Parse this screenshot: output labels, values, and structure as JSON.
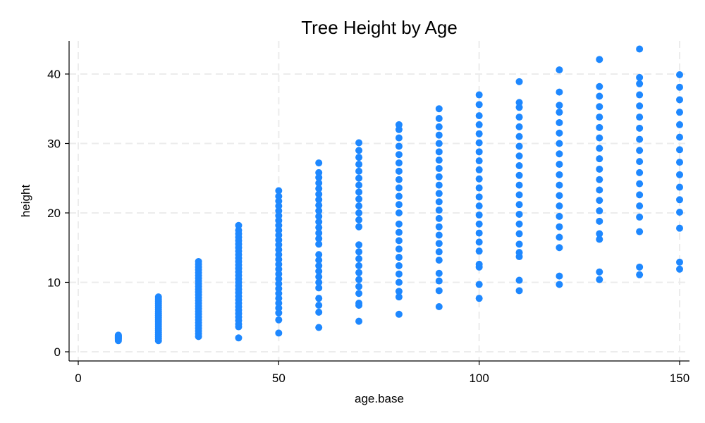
{
  "chart_data": {
    "type": "scatter",
    "title": "Tree Height by Age",
    "xlabel": "age.base",
    "ylabel": "height",
    "xlim": [
      -1,
      152
    ],
    "ylim": [
      -1.5,
      45
    ],
    "x_ticks": [
      0,
      50,
      100,
      150
    ],
    "y_ticks": [
      0,
      10,
      20,
      30,
      40
    ],
    "grid": true,
    "point_color": "#1E88FF",
    "series": [
      {
        "points": [
          [
            10,
            1.6
          ],
          [
            10,
            1.8
          ],
          [
            10,
            1.9
          ],
          [
            10,
            2.0
          ],
          [
            10,
            2.1
          ],
          [
            10,
            2.2
          ],
          [
            10,
            2.3
          ],
          [
            10,
            2.4
          ],
          [
            20,
            1.6
          ],
          [
            20,
            1.9
          ],
          [
            20,
            2.2
          ],
          [
            20,
            2.5
          ],
          [
            20,
            2.8
          ],
          [
            20,
            3.1
          ],
          [
            20,
            3.4
          ],
          [
            20,
            3.7
          ],
          [
            20,
            4.0
          ],
          [
            20,
            4.3
          ],
          [
            20,
            4.6
          ],
          [
            20,
            4.9
          ],
          [
            20,
            5.2
          ],
          [
            20,
            5.5
          ],
          [
            20,
            5.8
          ],
          [
            20,
            6.1
          ],
          [
            20,
            6.4
          ],
          [
            20,
            6.7
          ],
          [
            20,
            7.0
          ],
          [
            20,
            7.3
          ],
          [
            20,
            7.6
          ],
          [
            20,
            7.9
          ],
          [
            30,
            2.2
          ],
          [
            30,
            2.6
          ],
          [
            30,
            3.0
          ],
          [
            30,
            3.4
          ],
          [
            30,
            3.8
          ],
          [
            30,
            4.2
          ],
          [
            30,
            4.6
          ],
          [
            30,
            5.0
          ],
          [
            30,
            5.4
          ],
          [
            30,
            5.8
          ],
          [
            30,
            6.2
          ],
          [
            30,
            6.6
          ],
          [
            30,
            7.0
          ],
          [
            30,
            7.4
          ],
          [
            30,
            7.8
          ],
          [
            30,
            8.2
          ],
          [
            30,
            8.6
          ],
          [
            30,
            9.0
          ],
          [
            30,
            9.4
          ],
          [
            30,
            9.8
          ],
          [
            30,
            10.2
          ],
          [
            30,
            10.6
          ],
          [
            30,
            11.0
          ],
          [
            30,
            11.4
          ],
          [
            30,
            11.8
          ],
          [
            30,
            12.2
          ],
          [
            30,
            12.6
          ],
          [
            30,
            13.0
          ],
          [
            40,
            2.0
          ],
          [
            40,
            3.6
          ],
          [
            40,
            4.0
          ],
          [
            40,
            4.5
          ],
          [
            40,
            5.0
          ],
          [
            40,
            5.5
          ],
          [
            40,
            6.0
          ],
          [
            40,
            6.5
          ],
          [
            40,
            7.0
          ],
          [
            40,
            7.5
          ],
          [
            40,
            8.0
          ],
          [
            40,
            8.5
          ],
          [
            40,
            9.0
          ],
          [
            40,
            9.5
          ],
          [
            40,
            10.0
          ],
          [
            40,
            10.5
          ],
          [
            40,
            11.0
          ],
          [
            40,
            11.5
          ],
          [
            40,
            12.0
          ],
          [
            40,
            12.5
          ],
          [
            40,
            13.0
          ],
          [
            40,
            13.5
          ],
          [
            40,
            14.0
          ],
          [
            40,
            14.5
          ],
          [
            40,
            15.0
          ],
          [
            40,
            15.5
          ],
          [
            40,
            16.0
          ],
          [
            40,
            16.5
          ],
          [
            40,
            17.0
          ],
          [
            40,
            17.5
          ],
          [
            40,
            18.2
          ],
          [
            50,
            2.7
          ],
          [
            50,
            4.6
          ],
          [
            50,
            5.6
          ],
          [
            50,
            6.3
          ],
          [
            50,
            7.0
          ],
          [
            50,
            7.7
          ],
          [
            50,
            8.4
          ],
          [
            50,
            9.1
          ],
          [
            50,
            9.8
          ],
          [
            50,
            10.5
          ],
          [
            50,
            11.2
          ],
          [
            50,
            11.9
          ],
          [
            50,
            12.6
          ],
          [
            50,
            13.3
          ],
          [
            50,
            14.0
          ],
          [
            50,
            14.7
          ],
          [
            50,
            15.4
          ],
          [
            50,
            16.1
          ],
          [
            50,
            16.8
          ],
          [
            50,
            17.5
          ],
          [
            50,
            18.2
          ],
          [
            50,
            18.9
          ],
          [
            50,
            19.6
          ],
          [
            50,
            20.3
          ],
          [
            50,
            21.0
          ],
          [
            50,
            21.7
          ],
          [
            50,
            22.4
          ],
          [
            50,
            23.2
          ],
          [
            60,
            3.5
          ],
          [
            60,
            5.7
          ],
          [
            60,
            6.7
          ],
          [
            60,
            7.7
          ],
          [
            60,
            9.2
          ],
          [
            60,
            10.0
          ],
          [
            60,
            10.8
          ],
          [
            60,
            11.6
          ],
          [
            60,
            12.4
          ],
          [
            60,
            13.2
          ],
          [
            60,
            14.0
          ],
          [
            60,
            15.5
          ],
          [
            60,
            16.3
          ],
          [
            60,
            17.1
          ],
          [
            60,
            17.9
          ],
          [
            60,
            18.7
          ],
          [
            60,
            19.5
          ],
          [
            60,
            20.3
          ],
          [
            60,
            21.1
          ],
          [
            60,
            21.9
          ],
          [
            60,
            22.7
          ],
          [
            60,
            23.5
          ],
          [
            60,
            24.3
          ],
          [
            60,
            25.1
          ],
          [
            60,
            25.8
          ],
          [
            60,
            27.2
          ],
          [
            70,
            4.4
          ],
          [
            70,
            6.7
          ],
          [
            70,
            7.0
          ],
          [
            70,
            8.4
          ],
          [
            70,
            9.4
          ],
          [
            70,
            10.4
          ],
          [
            70,
            11.4
          ],
          [
            70,
            12.4
          ],
          [
            70,
            13.4
          ],
          [
            70,
            14.4
          ],
          [
            70,
            15.4
          ],
          [
            70,
            18.0
          ],
          [
            70,
            19.0
          ],
          [
            70,
            20.0
          ],
          [
            70,
            21.0
          ],
          [
            70,
            22.0
          ],
          [
            70,
            23.0
          ],
          [
            70,
            24.0
          ],
          [
            70,
            25.0
          ],
          [
            70,
            26.0
          ],
          [
            70,
            27.0
          ],
          [
            70,
            28.0
          ],
          [
            70,
            29.0
          ],
          [
            70,
            30.1
          ],
          [
            80,
            5.4
          ],
          [
            80,
            7.9
          ],
          [
            80,
            8.7
          ],
          [
            80,
            10.0
          ],
          [
            80,
            11.2
          ],
          [
            80,
            12.4
          ],
          [
            80,
            13.6
          ],
          [
            80,
            14.8
          ],
          [
            80,
            16.0
          ],
          [
            80,
            17.2
          ],
          [
            80,
            18.4
          ],
          [
            80,
            20.0
          ],
          [
            80,
            21.2
          ],
          [
            80,
            22.4
          ],
          [
            80,
            23.6
          ],
          [
            80,
            24.8
          ],
          [
            80,
            26.0
          ],
          [
            80,
            27.2
          ],
          [
            80,
            28.4
          ],
          [
            80,
            29.6
          ],
          [
            80,
            30.8
          ],
          [
            80,
            32.0
          ],
          [
            80,
            32.7
          ],
          [
            90,
            6.5
          ],
          [
            90,
            8.8
          ],
          [
            90,
            10.2
          ],
          [
            90,
            11.3
          ],
          [
            90,
            13.2
          ],
          [
            90,
            14.4
          ],
          [
            90,
            15.6
          ],
          [
            90,
            16.8
          ],
          [
            90,
            18.0
          ],
          [
            90,
            19.2
          ],
          [
            90,
            20.4
          ],
          [
            90,
            21.6
          ],
          [
            90,
            22.8
          ],
          [
            90,
            24.0
          ],
          [
            90,
            25.2
          ],
          [
            90,
            26.4
          ],
          [
            90,
            27.6
          ],
          [
            90,
            28.8
          ],
          [
            90,
            30.0
          ],
          [
            90,
            31.2
          ],
          [
            90,
            32.4
          ],
          [
            90,
            33.6
          ],
          [
            90,
            35.0
          ],
          [
            100,
            7.7
          ],
          [
            100,
            9.7
          ],
          [
            100,
            12.2
          ],
          [
            100,
            12.6
          ],
          [
            100,
            14.5
          ],
          [
            100,
            15.8
          ],
          [
            100,
            17.1
          ],
          [
            100,
            18.4
          ],
          [
            100,
            19.7
          ],
          [
            100,
            21.0
          ],
          [
            100,
            22.3
          ],
          [
            100,
            23.6
          ],
          [
            100,
            24.9
          ],
          [
            100,
            26.2
          ],
          [
            100,
            27.5
          ],
          [
            100,
            28.8
          ],
          [
            100,
            30.1
          ],
          [
            100,
            31.4
          ],
          [
            100,
            32.7
          ],
          [
            100,
            34.0
          ],
          [
            100,
            35.6
          ],
          [
            100,
            37.0
          ],
          [
            110,
            8.8
          ],
          [
            110,
            10.3
          ],
          [
            110,
            13.7
          ],
          [
            110,
            14.3
          ],
          [
            110,
            15.5
          ],
          [
            110,
            17.0
          ],
          [
            110,
            18.4
          ],
          [
            110,
            19.8
          ],
          [
            110,
            21.2
          ],
          [
            110,
            22.6
          ],
          [
            110,
            24.0
          ],
          [
            110,
            25.4
          ],
          [
            110,
            26.8
          ],
          [
            110,
            28.2
          ],
          [
            110,
            29.6
          ],
          [
            110,
            31.0
          ],
          [
            110,
            32.4
          ],
          [
            110,
            33.8
          ],
          [
            110,
            35.2
          ],
          [
            110,
            35.9
          ],
          [
            110,
            38.9
          ],
          [
            120,
            9.7
          ],
          [
            120,
            10.9
          ],
          [
            120,
            15.0
          ],
          [
            120,
            16.5
          ],
          [
            120,
            18.0
          ],
          [
            120,
            19.5
          ],
          [
            120,
            21.0
          ],
          [
            120,
            22.5
          ],
          [
            120,
            24.0
          ],
          [
            120,
            25.5
          ],
          [
            120,
            27.0
          ],
          [
            120,
            28.5
          ],
          [
            120,
            30.0
          ],
          [
            120,
            31.5
          ],
          [
            120,
            33.0
          ],
          [
            120,
            34.5
          ],
          [
            120,
            35.5
          ],
          [
            120,
            37.4
          ],
          [
            120,
            40.6
          ],
          [
            130,
            10.4
          ],
          [
            130,
            11.5
          ],
          [
            130,
            16.2
          ],
          [
            130,
            17.0
          ],
          [
            130,
            18.8
          ],
          [
            130,
            20.3
          ],
          [
            130,
            21.8
          ],
          [
            130,
            23.3
          ],
          [
            130,
            24.8
          ],
          [
            130,
            26.3
          ],
          [
            130,
            27.8
          ],
          [
            130,
            29.3
          ],
          [
            130,
            30.8
          ],
          [
            130,
            32.3
          ],
          [
            130,
            33.8
          ],
          [
            130,
            35.3
          ],
          [
            130,
            36.8
          ],
          [
            130,
            38.2
          ],
          [
            130,
            42.1
          ],
          [
            140,
            11.1
          ],
          [
            140,
            12.2
          ],
          [
            140,
            17.3
          ],
          [
            140,
            19.4
          ],
          [
            140,
            21.0
          ],
          [
            140,
            22.6
          ],
          [
            140,
            24.2
          ],
          [
            140,
            25.8
          ],
          [
            140,
            27.4
          ],
          [
            140,
            29.0
          ],
          [
            140,
            30.6
          ],
          [
            140,
            32.2
          ],
          [
            140,
            33.8
          ],
          [
            140,
            35.4
          ],
          [
            140,
            37.0
          ],
          [
            140,
            38.6
          ],
          [
            140,
            39.5
          ],
          [
            140,
            43.6
          ],
          [
            150,
            11.9
          ],
          [
            150,
            12.9
          ],
          [
            150,
            17.8
          ],
          [
            150,
            20.1
          ],
          [
            150,
            21.9
          ],
          [
            150,
            23.7
          ],
          [
            150,
            25.5
          ],
          [
            150,
            27.3
          ],
          [
            150,
            29.1
          ],
          [
            150,
            30.9
          ],
          [
            150,
            32.7
          ],
          [
            150,
            34.5
          ],
          [
            150,
            36.3
          ],
          [
            150,
            38.1
          ],
          [
            150,
            39.9
          ]
        ]
      }
    ]
  }
}
